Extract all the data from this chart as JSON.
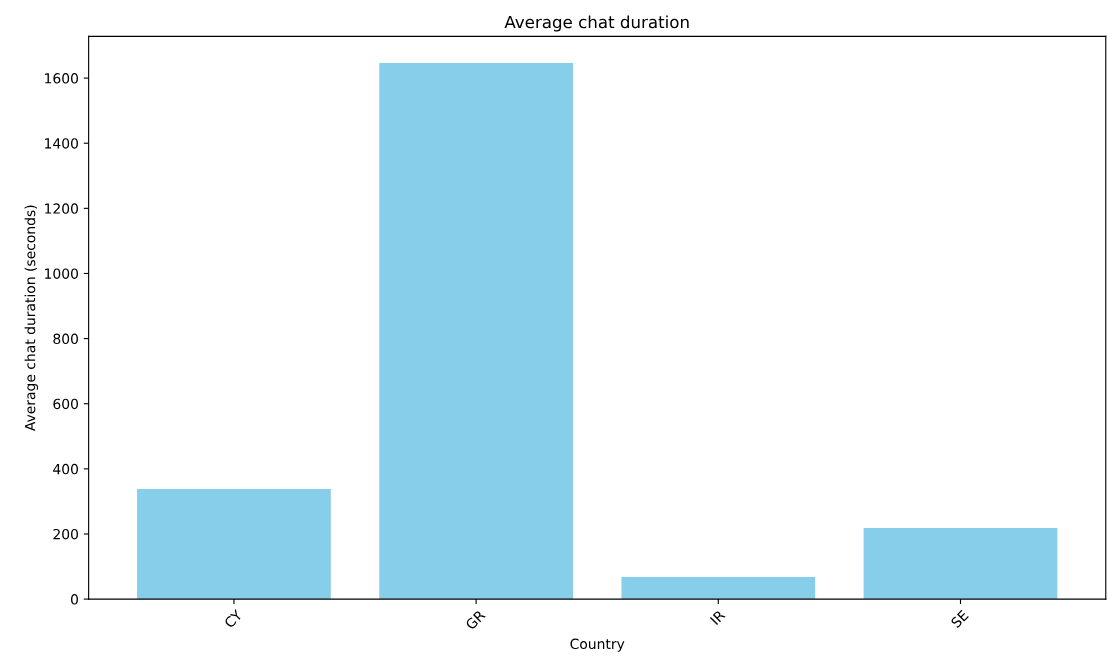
{
  "chart_data": {
    "type": "bar",
    "title": "Average chat duration",
    "xlabel": "Country",
    "ylabel": "Average chat duration (seconds)",
    "categories": [
      "CY",
      "GR",
      "IR",
      "SE"
    ],
    "values": [
      338,
      1646,
      68,
      218
    ],
    "color": "#87ceeb",
    "ylim": [
      0,
      1728
    ],
    "yticks": [
      0,
      200,
      400,
      600,
      800,
      1000,
      1200,
      1400,
      1600
    ],
    "grid": false
  }
}
